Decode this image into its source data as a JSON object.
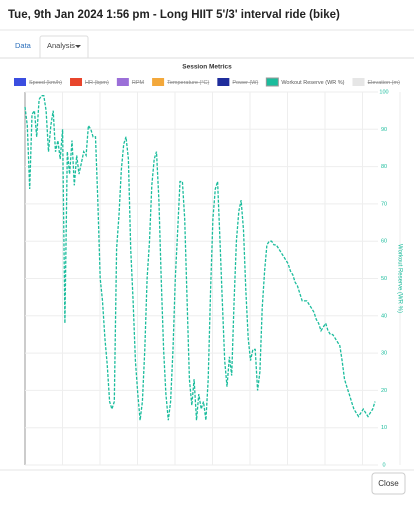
{
  "header": {
    "title": "Tue, 9th Jan 2024 1:56 pm - Long HIIT 5'/3' interval ride (bike)"
  },
  "tabs": [
    "Data",
    "Analysis"
  ],
  "chart_data": {
    "type": "line",
    "title": "Session Metrics",
    "legend": [
      {
        "name": "Speed (km/h)",
        "color": "#3b4ee0",
        "hidden": true
      },
      {
        "name": "HR (bpm)",
        "color": "#e8452c",
        "hidden": true
      },
      {
        "name": "RPM",
        "color": "#9b6fd8",
        "hidden": true
      },
      {
        "name": "Temperature (°C)",
        "color": "#f3a83b",
        "hidden": true
      },
      {
        "name": "Power (W)",
        "color": "#1f2d9c",
        "hidden": true
      },
      {
        "name": "Workout Reserve (WR %)",
        "color": "#1abc9c",
        "hidden": false
      },
      {
        "name": "Elevation (m)",
        "color": "#e6e6e6",
        "hidden": true
      }
    ],
    "series": [
      {
        "name": "Workout Reserve (WR %)",
        "color": "#1abc9c",
        "dashed": true,
        "values": [
          96,
          91,
          74,
          94,
          95,
          88,
          98,
          99,
          99,
          95,
          84,
          91,
          95,
          84,
          87,
          82,
          90,
          38,
          84,
          78,
          87,
          75,
          83,
          78,
          81,
          84,
          83,
          91,
          90,
          88,
          88,
          71,
          50,
          44,
          34,
          27,
          17,
          15,
          17,
          58,
          67,
          79,
          86,
          88,
          82,
          58,
          44,
          28,
          19,
          12,
          17,
          31,
          50,
          60,
          75,
          82,
          84,
          71,
          50,
          31,
          19,
          12,
          17,
          31,
          50,
          63,
          76,
          76,
          66,
          44,
          23,
          16,
          23,
          12,
          19,
          15,
          17,
          12,
          23,
          47,
          66,
          74,
          76,
          60,
          44,
          28,
          21,
          29,
          24,
          44,
          60,
          68,
          71,
          63,
          47,
          34,
          28,
          31,
          31,
          20,
          25,
          42,
          52,
          59,
          60,
          60,
          59,
          59,
          58,
          57,
          56,
          55,
          54,
          52,
          51,
          49,
          48,
          46,
          44,
          44,
          44,
          43,
          42,
          41,
          39,
          38,
          36,
          37,
          38,
          36,
          35,
          35,
          34,
          33,
          32,
          28,
          23,
          21,
          19,
          17,
          15,
          14,
          13,
          14,
          15,
          14,
          13,
          14,
          15,
          17
        ]
      }
    ],
    "y_axis_side": "right",
    "ylabel": "Workout Reserve (WR %)",
    "ylim": [
      0,
      100
    ],
    "yticks": [
      0,
      10,
      20,
      30,
      40,
      50,
      60,
      70,
      80,
      90,
      100
    ],
    "grid": true
  },
  "footer": {
    "button": "Close"
  }
}
